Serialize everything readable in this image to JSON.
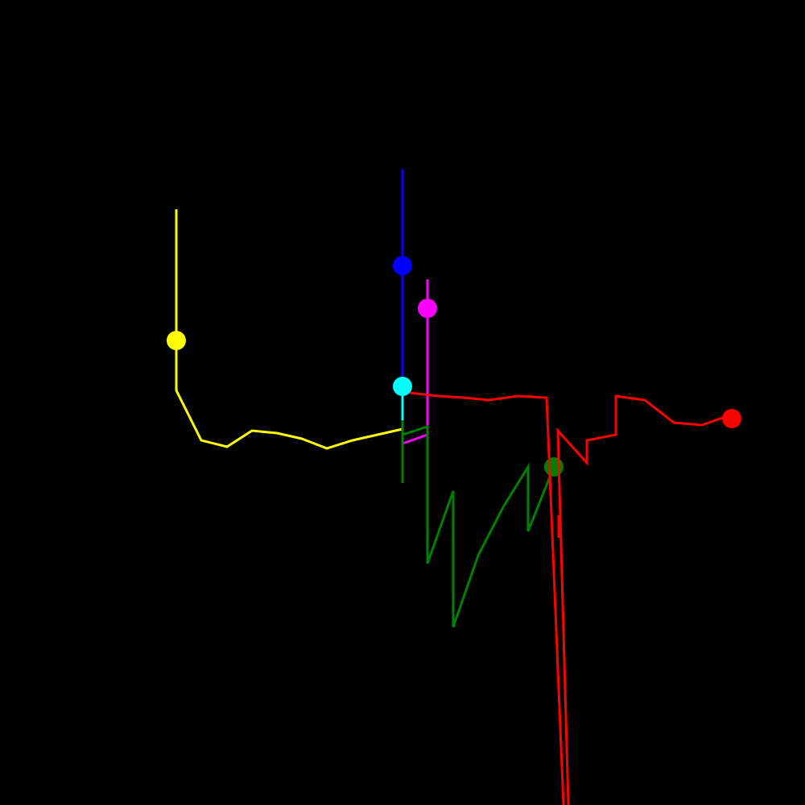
{
  "scene": {
    "background": "#000000",
    "agents": [
      {
        "name": "yellow",
        "color": "#ffff00"
      },
      {
        "name": "blue",
        "color": "#0000ff"
      },
      {
        "name": "magenta",
        "color": "#ff00ff"
      },
      {
        "name": "cyan",
        "color": "#00ffff"
      },
      {
        "name": "green",
        "color": "#008000"
      },
      {
        "name": "red",
        "color": "#ff0000"
      }
    ]
  }
}
